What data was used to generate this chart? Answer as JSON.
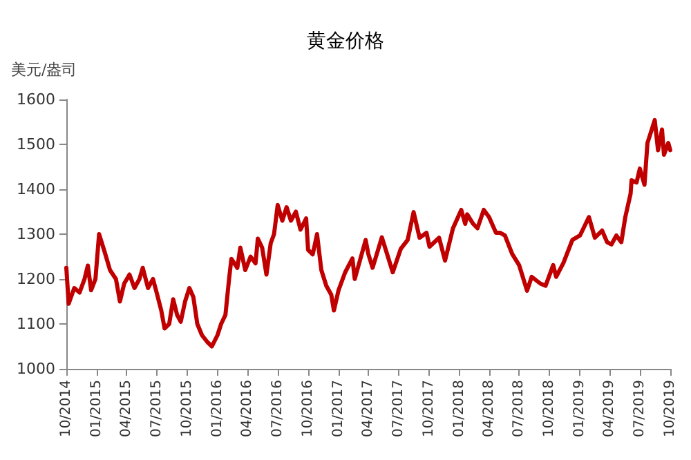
{
  "chart_data": {
    "type": "line",
    "title": "黄金价格",
    "ylabel": "美元/盎司",
    "x": [
      "2014-10-01",
      "2014-10-08",
      "2014-10-25",
      "2014-11-10",
      "2014-11-25",
      "2014-12-05",
      "2014-12-15",
      "2014-12-28",
      "2015-01-08",
      "2015-01-25",
      "2015-02-10",
      "2015-02-28",
      "2015-03-12",
      "2015-03-25",
      "2015-04-10",
      "2015-04-25",
      "2015-05-10",
      "2015-05-20",
      "2015-06-05",
      "2015-06-20",
      "2015-07-01",
      "2015-07-15",
      "2015-07-25",
      "2015-08-08",
      "2015-08-20",
      "2015-09-01",
      "2015-09-12",
      "2015-09-25",
      "2015-10-08",
      "2015-10-20",
      "2015-11-01",
      "2015-11-15",
      "2015-12-01",
      "2015-12-15",
      "2016-01-01",
      "2016-01-12",
      "2016-01-25",
      "2016-02-05",
      "2016-02-12",
      "2016-03-01",
      "2016-03-10",
      "2016-03-25",
      "2016-04-10",
      "2016-04-25",
      "2016-05-02",
      "2016-05-15",
      "2016-05-28",
      "2016-06-10",
      "2016-06-20",
      "2016-07-01",
      "2016-07-15",
      "2016-07-28",
      "2016-08-10",
      "2016-08-25",
      "2016-09-08",
      "2016-09-25",
      "2016-10-01",
      "2016-10-15",
      "2016-10-28",
      "2016-11-10",
      "2016-11-25",
      "2016-12-10",
      "2016-12-18",
      "2017-01-01",
      "2017-01-21",
      "2017-02-12",
      "2017-02-19",
      "2017-03-24",
      "2017-04-01",
      "2017-04-14",
      "2017-05-12",
      "2017-06-14",
      "2017-07-08",
      "2017-07-29",
      "2017-08-16",
      "2017-09-03",
      "2017-09-24",
      "2017-10-03",
      "2017-11-01",
      "2017-11-19",
      "2017-12-13",
      "2018-01-07",
      "2018-01-19",
      "2018-01-25",
      "2018-02-12",
      "2018-02-25",
      "2018-03-16",
      "2018-04-01",
      "2018-04-22",
      "2018-05-05",
      "2018-05-19",
      "2018-06-10",
      "2018-07-01",
      "2018-07-25",
      "2018-08-08",
      "2018-09-03",
      "2018-09-19",
      "2018-10-12",
      "2018-10-21",
      "2018-11-12",
      "2018-12-09",
      "2019-01-01",
      "2019-01-28",
      "2019-02-15",
      "2019-03-09",
      "2019-03-24",
      "2019-04-06",
      "2019-04-21",
      "2019-05-06",
      "2019-05-18",
      "2019-06-03",
      "2019-06-06",
      "2019-06-21",
      "2019-07-01",
      "2019-07-15",
      "2019-07-24",
      "2019-08-06",
      "2019-08-15",
      "2019-08-25",
      "2019-09-06",
      "2019-09-12",
      "2019-09-25",
      "2019-10-01"
    ],
    "series": [
      {
        "color": "#c00000",
        "values": [
          1225,
          1145,
          1180,
          1170,
          1200,
          1230,
          1175,
          1200,
          1300,
          1260,
          1220,
          1200,
          1150,
          1190,
          1210,
          1180,
          1200,
          1225,
          1180,
          1200,
          1170,
          1130,
          1090,
          1100,
          1155,
          1120,
          1105,
          1150,
          1180,
          1160,
          1100,
          1075,
          1060,
          1050,
          1075,
          1100,
          1120,
          1200,
          1245,
          1225,
          1270,
          1220,
          1250,
          1235,
          1290,
          1270,
          1210,
          1280,
          1300,
          1365,
          1330,
          1360,
          1330,
          1350,
          1310,
          1335,
          1265,
          1255,
          1300,
          1220,
          1185,
          1165,
          1130,
          1175,
          1215,
          1246,
          1200,
          1287,
          1256,
          1225,
          1293,
          1215,
          1267,
          1287,
          1349,
          1292,
          1303,
          1272,
          1292,
          1241,
          1313,
          1354,
          1323,
          1344,
          1323,
          1313,
          1354,
          1338,
          1303,
          1303,
          1297,
          1256,
          1231,
          1174,
          1205,
          1190,
          1185,
          1231,
          1205,
          1236,
          1287,
          1297,
          1338,
          1292,
          1308,
          1282,
          1277,
          1297,
          1282,
          1338,
          1390,
          1420,
          1415,
          1446,
          1410,
          1503,
          1533,
          1554,
          1487,
          1533,
          1477,
          1503,
          1487
        ]
      }
    ],
    "xlim": [
      "2014-10-01",
      "2019-10-01"
    ],
    "xticks": [
      {
        "value": "2014-10-01",
        "label": "10/2014"
      },
      {
        "value": "2015-01-01",
        "label": "01/2015"
      },
      {
        "value": "2015-04-01",
        "label": "04/2015"
      },
      {
        "value": "2015-07-01",
        "label": "07/2015"
      },
      {
        "value": "2015-10-01",
        "label": "10/2015"
      },
      {
        "value": "2016-01-01",
        "label": "01/2016"
      },
      {
        "value": "2016-04-01",
        "label": "04/2016"
      },
      {
        "value": "2016-07-01",
        "label": "07/2016"
      },
      {
        "value": "2016-10-01",
        "label": "10/2016"
      },
      {
        "value": "2017-01-01",
        "label": "01/2017"
      },
      {
        "value": "2017-04-01",
        "label": "04/2017"
      },
      {
        "value": "2017-07-01",
        "label": "07/2017"
      },
      {
        "value": "2017-10-01",
        "label": "10/2017"
      },
      {
        "value": "2018-01-01",
        "label": "01/2018"
      },
      {
        "value": "2018-04-01",
        "label": "04/2018"
      },
      {
        "value": "2018-07-01",
        "label": "07/2018"
      },
      {
        "value": "2018-10-01",
        "label": "10/2018"
      },
      {
        "value": "2019-01-01",
        "label": "01/2019"
      },
      {
        "value": "2019-04-01",
        "label": "04/2019"
      },
      {
        "value": "2019-07-01",
        "label": "07/2019"
      },
      {
        "value": "2019-10-01",
        "label": "10/2019"
      }
    ],
    "ylim": [
      1000,
      1600
    ],
    "yticks": [
      1000,
      1100,
      1200,
      1300,
      1400,
      1500,
      1600
    ],
    "grid": false,
    "marker": "none",
    "line_style": "solid"
  }
}
